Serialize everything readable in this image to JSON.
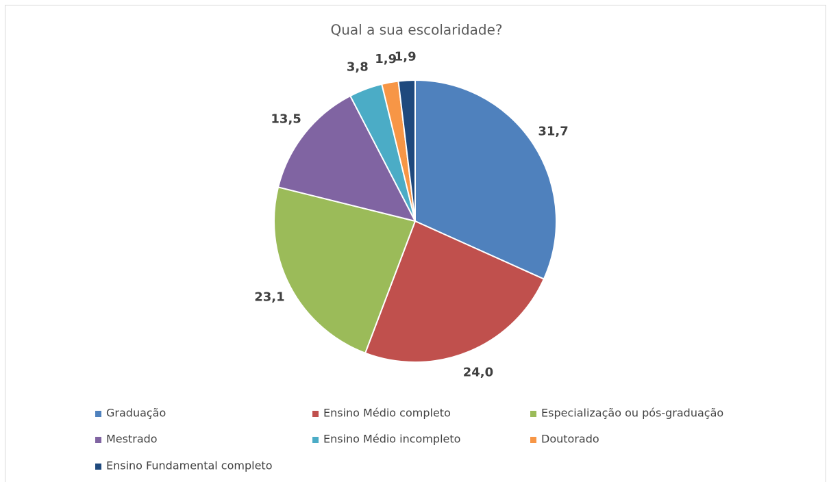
{
  "chart_data": {
    "type": "pie",
    "title": "Qual a sua escolaridade?",
    "categories": [
      "Graduação",
      "Ensino Médio completo",
      "Especialização ou pós-graduação",
      "Mestrado",
      "Ensino Médio incompleto",
      "Doutorado",
      "Ensino Fundamental completo"
    ],
    "values": [
      31.7,
      24.0,
      23.1,
      13.5,
      3.8,
      1.9,
      1.9
    ],
    "value_labels": [
      "31,7",
      "24,0",
      "23,1",
      "13,5",
      "3,8",
      "1,9",
      "1,9"
    ],
    "colors": [
      "#4f81bd",
      "#c0504d",
      "#9bbb59",
      "#8064a2",
      "#4bacc6",
      "#f79646",
      "#1f497d"
    ],
    "legend": "bottom"
  }
}
